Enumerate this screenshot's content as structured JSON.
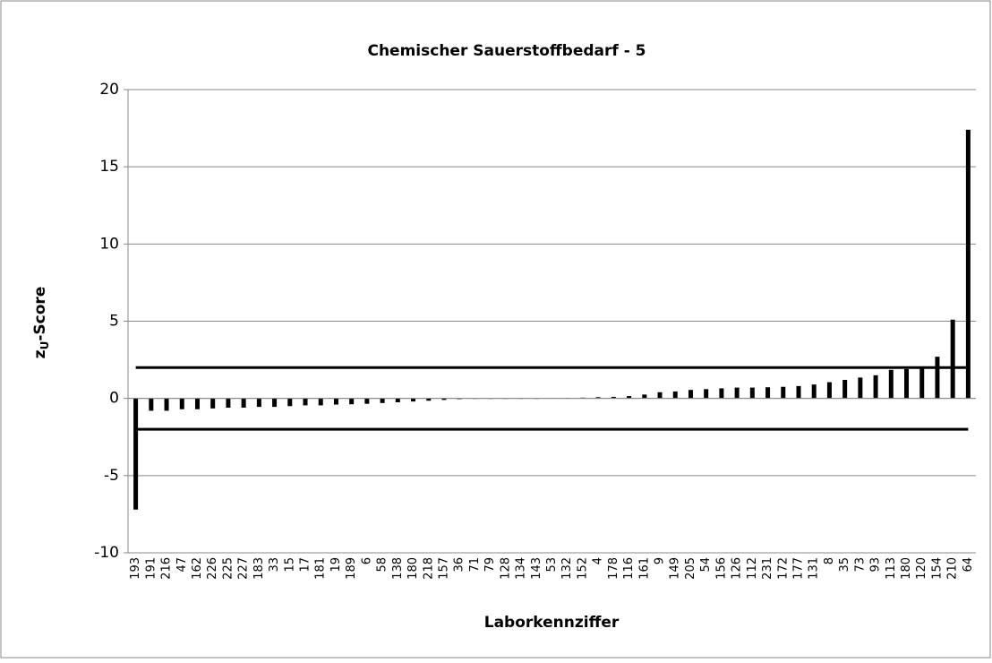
{
  "chart_data": {
    "type": "bar",
    "title": "Chemischer Sauerstoffbedarf - 5",
    "x_label": "Laborkennziffer",
    "y_label": "z",
    "y_label_sub": "U",
    "y_label_rest": "-Score",
    "categories": [
      "193",
      "191",
      "216",
      "47",
      "162",
      "226",
      "225",
      "227",
      "183",
      "33",
      "15",
      "17",
      "181",
      "19",
      "189",
      "6",
      "58",
      "138",
      "180",
      "218",
      "157",
      "36",
      "71",
      "79",
      "128",
      "134",
      "143",
      "53",
      "132",
      "152",
      "4",
      "178",
      "116",
      "161",
      "9",
      "149",
      "205",
      "54",
      "156",
      "126",
      "112",
      "231",
      "172",
      "177",
      "131",
      "8",
      "35",
      "73",
      "93",
      "113",
      "180",
      "120",
      "154",
      "210",
      "64"
    ],
    "values": [
      -7.2,
      -0.8,
      -0.8,
      -0.7,
      -0.7,
      -0.65,
      -0.6,
      -0.6,
      -0.55,
      -0.55,
      -0.5,
      -0.45,
      -0.45,
      -0.4,
      -0.38,
      -0.35,
      -0.3,
      -0.25,
      -0.2,
      -0.15,
      -0.1,
      -0.05,
      -0.03,
      -0.02,
      -0.02,
      -0.01,
      0,
      0.02,
      0.03,
      0.05,
      0.08,
      0.1,
      0.15,
      0.25,
      0.4,
      0.45,
      0.55,
      0.6,
      0.65,
      0.7,
      0.7,
      0.72,
      0.75,
      0.8,
      0.9,
      1.05,
      1.2,
      1.35,
      1.5,
      1.85,
      1.9,
      1.95,
      2.7,
      5.1,
      17.4
    ],
    "color": "#000000",
    "reference_lines": [
      2,
      -2
    ],
    "ylim": [
      -10,
      20
    ],
    "yticks": [
      -10,
      -5,
      0,
      5,
      10,
      15,
      20
    ],
    "grid": true
  }
}
